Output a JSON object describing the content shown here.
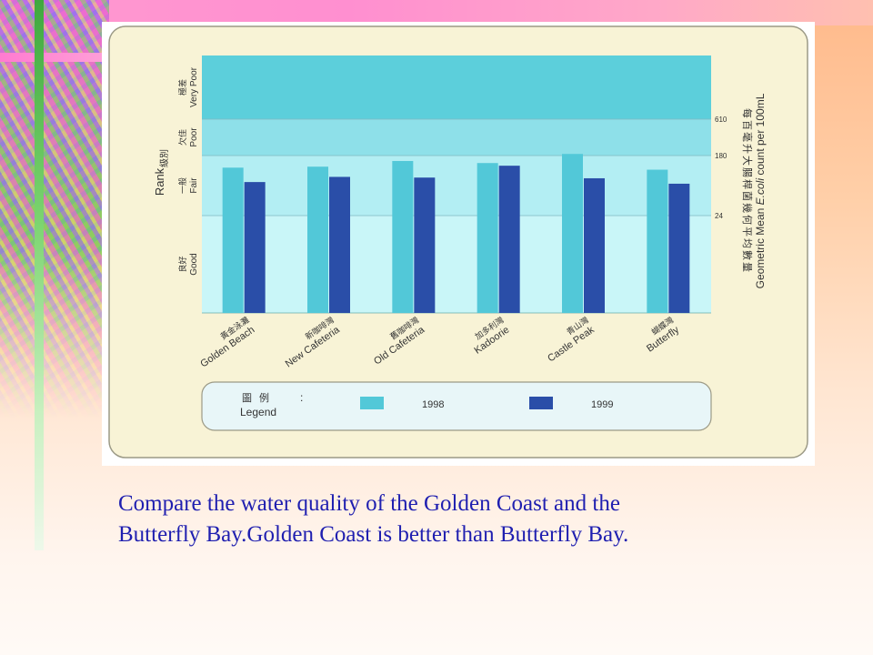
{
  "caption": {
    "line1": "Compare the water quality of the Golden Coast and the",
    "line2": "Butterfly Bay.Golden Coast is better than Butterfly Bay."
  },
  "colors": {
    "panel_bg": "#f8f3d6",
    "very_poor_band": "#5ccfdb",
    "poor_band": "#8ee0e9",
    "fair_band": "#b3eef3",
    "good_band": "#c9f6f8",
    "series_1998": "#52c8d8",
    "series_1999": "#2a4ea8"
  },
  "chart_data": {
    "type": "bar",
    "y_left_label_cn": "級別",
    "y_left_label_en": "Rank",
    "y_right_label_cn": "每百毫升大腸桿菌幾何平均數量",
    "y_right_label_en_pre": "Geometric Mean ",
    "y_right_label_en_em": "E.coli",
    "y_right_label_en_post": " count per 100mL",
    "rank_bands": [
      {
        "cn": "極差",
        "en": "Very Poor",
        "lower": 610
      },
      {
        "cn": "欠佳",
        "en": "Poor",
        "lower": 180
      },
      {
        "cn": "一般",
        "en": "Fair",
        "lower": 24
      },
      {
        "cn": "良好",
        "en": "Good",
        "lower": 0
      }
    ],
    "right_ticks": [
      "610",
      "180",
      "24"
    ],
    "scale": "log",
    "categories": [
      {
        "cn": "黃金泳灘",
        "en": "Golden Beach"
      },
      {
        "cn": "新咖啡灣",
        "en": "New Cafeteria"
      },
      {
        "cn": "舊咖啡灣",
        "en": "Old Cafeteria"
      },
      {
        "cn": "加多利灣",
        "en": "Kadoorie"
      },
      {
        "cn": "青山灣",
        "en": "Castle Peak"
      },
      {
        "cn": "蝴蝶灣",
        "en": "Butterfly"
      }
    ],
    "series": [
      {
        "name": "1998",
        "values": [
          120,
          124,
          150,
          140,
          190,
          112
        ]
      },
      {
        "name": "1999",
        "values": [
          74,
          88,
          86,
          128,
          84,
          70
        ]
      }
    ],
    "legend": {
      "label_cn": "圖例",
      "label_en": "Legend",
      "colon": ":"
    }
  }
}
